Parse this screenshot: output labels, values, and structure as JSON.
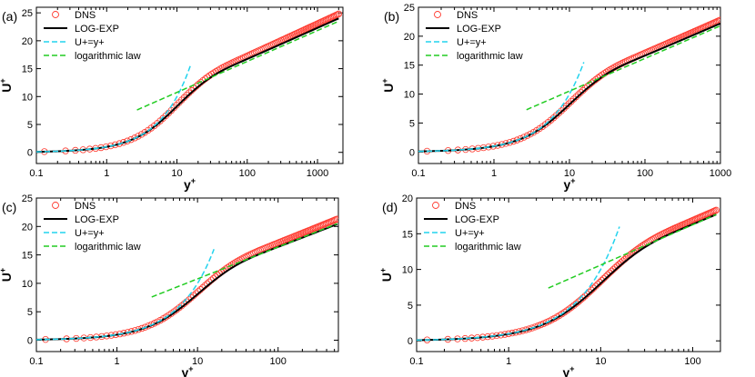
{
  "chart_data": [
    {
      "type": "line",
      "panel_label": "(a)",
      "xlabel": "y",
      "xlabel_sup": "+",
      "ylabel": "U",
      "ylabel_sup": "+",
      "xscale": "log",
      "xlim": [
        0.1,
        2300
      ],
      "ylim": [
        -2,
        26
      ],
      "xtick_labels": [
        "0.1",
        "1",
        "10",
        "100",
        "1000"
      ],
      "yticks": [
        0,
        5,
        10,
        15,
        20,
        25
      ],
      "legend": [
        "DNS",
        "LOG-EXP",
        "U+=y+",
        "logarithmic law"
      ],
      "legend_position": "top-left",
      "series": [
        {
          "name": "DNS",
          "style": "open-circle",
          "color": "#ff3b30",
          "x_max": 2000,
          "y_max": 24.8
        },
        {
          "name": "LOG-EXP",
          "style": "solid",
          "color": "#000000",
          "x_max": 2000,
          "y_max": 24.0
        },
        {
          "name": "U+=y+",
          "style": "dashed",
          "color": "#22d3ee",
          "x": [
            0.1,
            15.5
          ],
          "y": [
            0.1,
            15.5
          ]
        },
        {
          "name": "logarithmic law",
          "style": "dashed",
          "color": "#22cc22",
          "x_range": [
            2.7,
            2000
          ],
          "y_at_start": 7.6,
          "y_at_end": 23.5
        }
      ]
    },
    {
      "type": "line",
      "panel_label": "(b)",
      "xlabel": "y",
      "xlabel_sup": "+",
      "ylabel": "U",
      "ylabel_sup": "+",
      "xscale": "log",
      "xlim": [
        0.1,
        1000
      ],
      "ylim": [
        -2,
        25
      ],
      "xtick_labels": [
        "0.1",
        "1",
        "10",
        "100",
        "1000"
      ],
      "yticks": [
        0,
        5,
        10,
        15,
        20,
        25
      ],
      "legend": [
        "DNS",
        "LOG-EXP",
        "U+=y+",
        "logarithmic law"
      ],
      "legend_position": "top-left",
      "series": [
        {
          "name": "DNS",
          "style": "open-circle",
          "color": "#ff3b30",
          "x_max": 1000,
          "y_max": 22.8
        },
        {
          "name": "LOG-EXP",
          "style": "solid",
          "color": "#000000",
          "x_max": 1000,
          "y_max": 22.2
        },
        {
          "name": "U+=y+",
          "style": "dashed",
          "color": "#22d3ee",
          "x": [
            0.1,
            15.5
          ],
          "y": [
            0.1,
            15.5
          ]
        },
        {
          "name": "logarithmic law",
          "style": "dashed",
          "color": "#22cc22",
          "x_range": [
            2.7,
            1000
          ],
          "y_at_start": 7.3,
          "y_at_end": 21.8
        }
      ]
    },
    {
      "type": "line",
      "panel_label": "(c)",
      "xlabel": "y",
      "xlabel_sup": "+",
      "ylabel": "U",
      "ylabel_sup": "+",
      "xscale": "log",
      "xlim": [
        0.1,
        560
      ],
      "ylim": [
        -2,
        25
      ],
      "xtick_labels": [
        "0.1",
        "1",
        "10",
        "100"
      ],
      "yticks": [
        0,
        5,
        10,
        15,
        20,
        25
      ],
      "legend": [
        "DNS",
        "LOG-EXP",
        "U+=y+",
        "logarithmic law"
      ],
      "legend_position": "top-left",
      "series": [
        {
          "name": "DNS",
          "style": "open-circle",
          "color": "#ff3b30",
          "x_max": 540,
          "y_max": 21.3
        },
        {
          "name": "LOG-EXP",
          "style": "solid",
          "color": "#000000",
          "x_max": 540,
          "y_max": 20.4
        },
        {
          "name": "U+=y+",
          "style": "dashed",
          "color": "#22d3ee",
          "x": [
            0.1,
            16
          ],
          "y": [
            0.1,
            16
          ]
        },
        {
          "name": "logarithmic law",
          "style": "dashed",
          "color": "#22cc22",
          "x_range": [
            2.7,
            540
          ],
          "y_at_start": 7.6,
          "y_at_end": 20.5
        }
      ]
    },
    {
      "type": "line",
      "panel_label": "(d)",
      "xlabel": "y",
      "xlabel_sup": "+",
      "ylabel": "U",
      "ylabel_sup": "+",
      "xscale": "log",
      "xlim": [
        0.1,
        200
      ],
      "ylim": [
        -1.5,
        20
      ],
      "xtick_labels": [
        "0.1",
        "1",
        "10",
        "100"
      ],
      "yticks": [
        0,
        5,
        10,
        15,
        20
      ],
      "legend": [
        "DNS",
        "LOG-EXP",
        "U+=y+",
        "logarithmic law"
      ],
      "legend_position": "top-left",
      "series": [
        {
          "name": "DNS",
          "style": "open-circle",
          "color": "#ff3b30",
          "x_max": 180,
          "y_max": 18.3
        },
        {
          "name": "LOG-EXP",
          "style": "solid",
          "color": "#000000",
          "x_max": 180,
          "y_max": 17.7
        },
        {
          "name": "U+=y+",
          "style": "dashed",
          "color": "#22d3ee",
          "x": [
            0.1,
            16
          ],
          "y": [
            0.1,
            16
          ]
        },
        {
          "name": "logarithmic law",
          "style": "dashed",
          "color": "#22cc22",
          "x_range": [
            2.7,
            180
          ],
          "y_at_start": 7.4,
          "y_at_end": 17.7
        }
      ]
    }
  ]
}
